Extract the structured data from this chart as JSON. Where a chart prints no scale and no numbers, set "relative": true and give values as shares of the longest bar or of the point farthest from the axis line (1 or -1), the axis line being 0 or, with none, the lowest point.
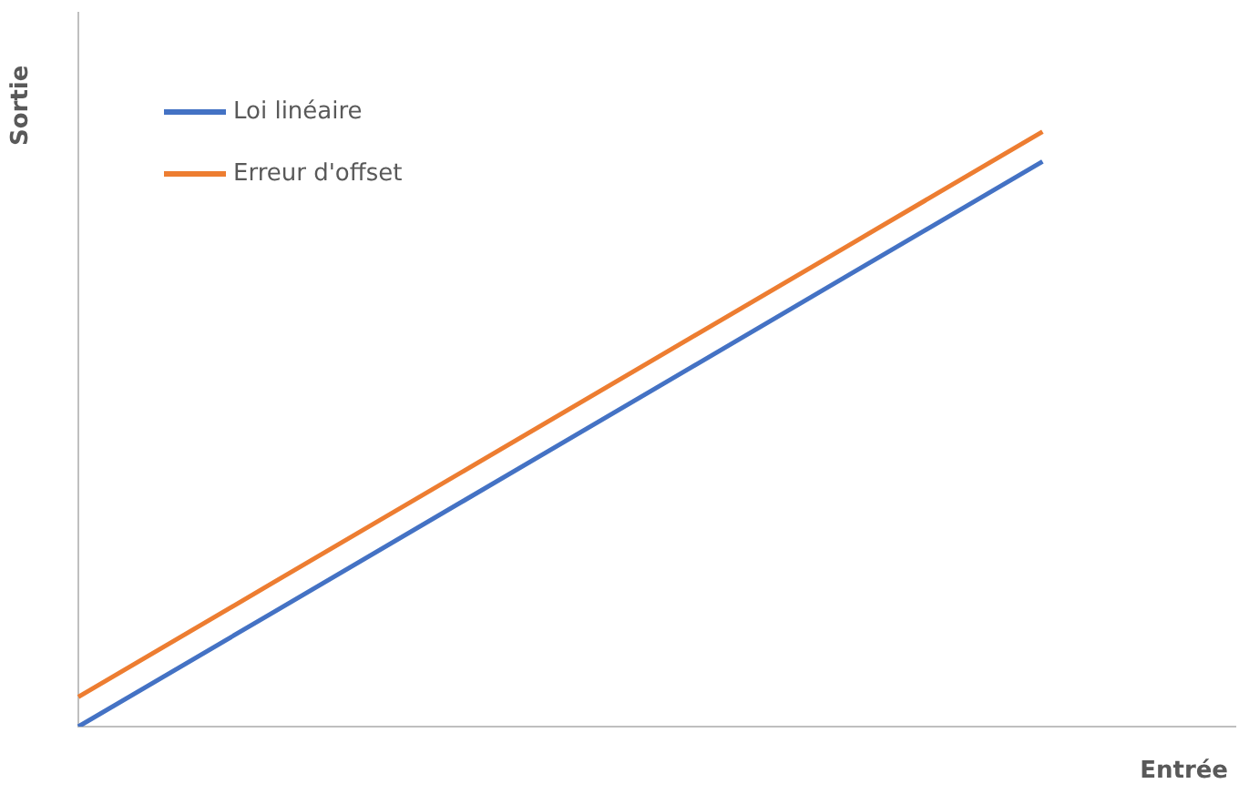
{
  "chart_data": {
    "type": "line",
    "relative": true,
    "xlabel": "Entrée",
    "ylabel": "Sortie",
    "legend": "top left",
    "grid": false,
    "categories": [
      null,
      null,
      null,
      null,
      null,
      null,
      null
    ],
    "series": [
      {
        "name": "Loi linéaire",
        "color": "#4472c4",
        "values": [
          0,
          0.19,
          0.38,
          0.57,
          0.76,
          0.95,
          null
        ]
      },
      {
        "name": "Erreur d'offset",
        "color": "#ed7d31",
        "values": [
          0.05,
          0.24,
          0.43,
          0.62,
          0.81,
          1.0,
          null
        ]
      }
    ]
  }
}
